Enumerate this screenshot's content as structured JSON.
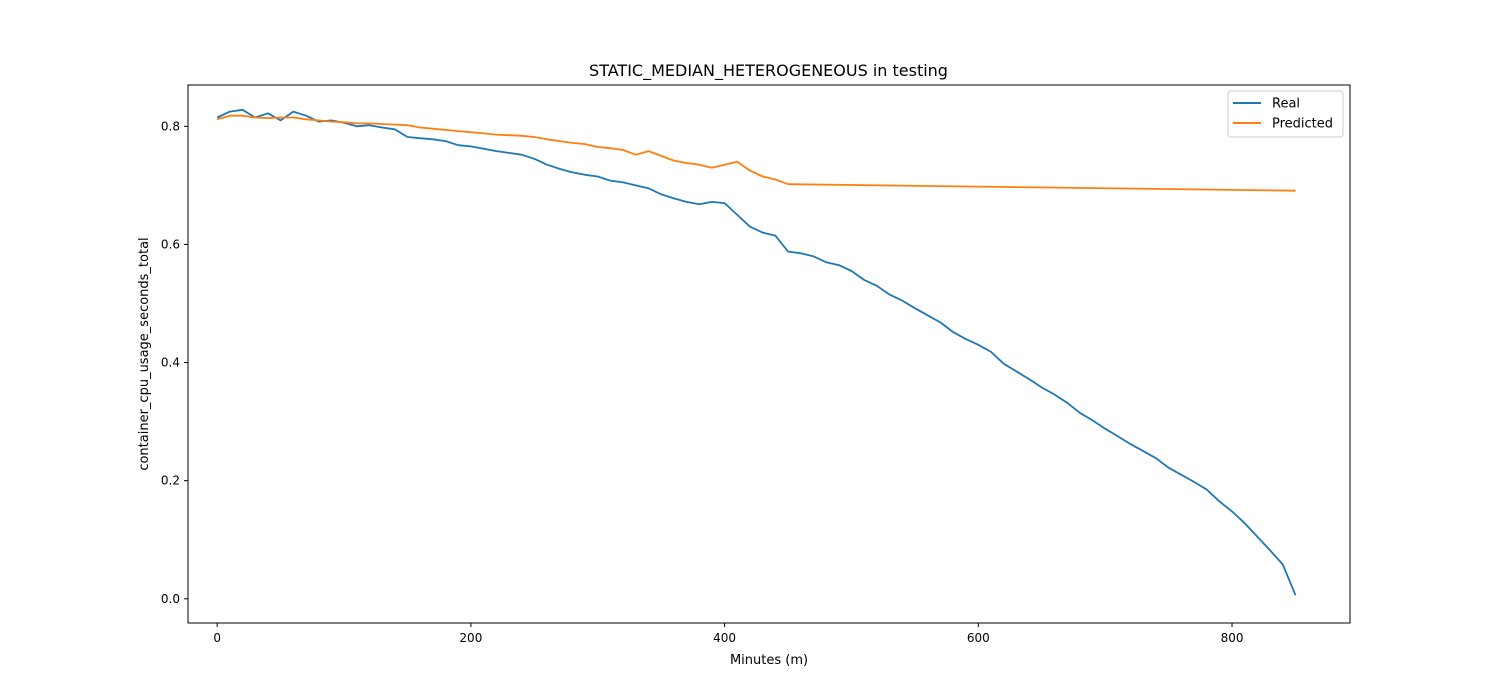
{
  "chart_data": {
    "type": "line",
    "title": "STATIC_MEDIAN_HETEROGENEOUS in testing",
    "xlabel": "Minutes (m)",
    "ylabel": "container_cpu_usage_seconds_total",
    "xlim": [
      -23,
      893
    ],
    "ylim": [
      -0.041,
      0.87
    ],
    "xticks": [
      0,
      200,
      400,
      600,
      800
    ],
    "yticks": [
      0.0,
      0.2,
      0.4,
      0.6,
      0.8
    ],
    "xtick_labels": [
      "0",
      "200",
      "400",
      "600",
      "800"
    ],
    "ytick_labels": [
      "0.0",
      "0.2",
      "0.4",
      "0.6",
      "0.8"
    ],
    "grid": false,
    "legend_position": "top-right",
    "series": [
      {
        "name": "Real",
        "color": "#1f77b4",
        "x": [
          0,
          10,
          20,
          30,
          40,
          50,
          60,
          70,
          80,
          90,
          100,
          110,
          120,
          130,
          140,
          150,
          160,
          170,
          180,
          190,
          200,
          210,
          220,
          230,
          240,
          250,
          260,
          270,
          280,
          290,
          300,
          310,
          320,
          330,
          340,
          350,
          360,
          370,
          380,
          390,
          400,
          410,
          420,
          430,
          440,
          450,
          460,
          470,
          480,
          490,
          500,
          510,
          520,
          530,
          540,
          550,
          560,
          570,
          580,
          590,
          600,
          610,
          620,
          630,
          640,
          650,
          660,
          670,
          680,
          690,
          700,
          710,
          720,
          730,
          740,
          750,
          760,
          770,
          780,
          790,
          800,
          810,
          820,
          830,
          840,
          850
        ],
        "y": [
          0.815,
          0.825,
          0.828,
          0.815,
          0.822,
          0.81,
          0.825,
          0.818,
          0.808,
          0.81,
          0.806,
          0.8,
          0.802,
          0.798,
          0.795,
          0.782,
          0.78,
          0.778,
          0.775,
          0.768,
          0.766,
          0.762,
          0.758,
          0.755,
          0.752,
          0.745,
          0.735,
          0.728,
          0.722,
          0.718,
          0.715,
          0.708,
          0.705,
          0.7,
          0.695,
          0.685,
          0.678,
          0.672,
          0.668,
          0.672,
          0.67,
          0.65,
          0.63,
          0.62,
          0.615,
          0.588,
          0.585,
          0.58,
          0.57,
          0.565,
          0.555,
          0.54,
          0.53,
          0.515,
          0.505,
          0.492,
          0.48,
          0.468,
          0.452,
          0.44,
          0.43,
          0.418,
          0.398,
          0.385,
          0.372,
          0.358,
          0.346,
          0.332,
          0.315,
          0.302,
          0.288,
          0.275,
          0.262,
          0.25,
          0.238,
          0.222,
          0.21,
          0.198,
          0.185,
          0.165,
          0.148,
          0.128,
          0.105,
          0.082,
          0.058,
          0.006
        ]
      },
      {
        "name": "Predicted",
        "color": "#ff7f0e",
        "x": [
          0,
          10,
          20,
          30,
          40,
          50,
          60,
          70,
          80,
          90,
          100,
          110,
          120,
          130,
          140,
          150,
          160,
          170,
          180,
          190,
          200,
          210,
          220,
          230,
          240,
          250,
          260,
          270,
          280,
          290,
          300,
          310,
          320,
          330,
          340,
          350,
          360,
          370,
          380,
          390,
          400,
          410,
          420,
          430,
          440,
          450,
          850
        ],
        "y": [
          0.812,
          0.818,
          0.818,
          0.815,
          0.814,
          0.815,
          0.815,
          0.812,
          0.81,
          0.808,
          0.807,
          0.805,
          0.805,
          0.804,
          0.803,
          0.802,
          0.798,
          0.796,
          0.794,
          0.792,
          0.79,
          0.788,
          0.786,
          0.785,
          0.784,
          0.782,
          0.778,
          0.775,
          0.772,
          0.77,
          0.765,
          0.763,
          0.76,
          0.752,
          0.758,
          0.75,
          0.742,
          0.738,
          0.735,
          0.73,
          0.735,
          0.74,
          0.725,
          0.715,
          0.71,
          0.702,
          0.691
        ]
      }
    ]
  }
}
